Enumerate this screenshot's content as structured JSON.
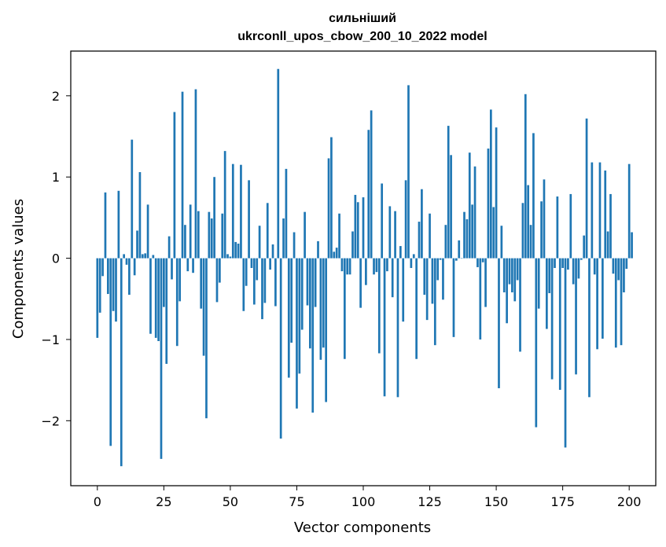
{
  "chart_data": {
    "type": "bar",
    "title": "сильніший",
    "subtitle": "ukrconll_upos_cbow_200_10_2022 model",
    "xlabel": "Vector components",
    "ylabel": "Components values",
    "xlim": [
      -10,
      210
    ],
    "ylim": [
      -2.8,
      2.55
    ],
    "xticks": [
      0,
      25,
      50,
      75,
      100,
      125,
      150,
      175,
      200
    ],
    "yticks": [
      -2,
      -1,
      0,
      1,
      2
    ],
    "ytick_labels": [
      "−2",
      "−1",
      "0",
      "1",
      "2"
    ],
    "grid": false,
    "bar_color": "#1f77b4",
    "values": [
      -0.98,
      -0.67,
      -0.22,
      0.81,
      -0.44,
      -2.31,
      -0.65,
      -0.78,
      0.83,
      -2.56,
      0.05,
      -0.08,
      -0.45,
      1.46,
      -0.21,
      0.34,
      1.06,
      0.05,
      0.06,
      0.66,
      -0.93,
      0.04,
      -0.98,
      -1.02,
      -2.47,
      -0.6,
      -1.3,
      0.27,
      -0.26,
      1.8,
      -1.08,
      -0.53,
      2.05,
      0.41,
      -0.16,
      0.66,
      -0.18,
      2.08,
      0.58,
      -0.62,
      -1.2,
      -1.97,
      0.57,
      0.49,
      1.0,
      -0.54,
      -0.3,
      0.55,
      1.32,
      0.05,
      0.02,
      1.16,
      0.2,
      0.18,
      1.15,
      -0.65,
      -0.34,
      0.96,
      -0.12,
      -0.57,
      -0.27,
      0.4,
      -0.75,
      -0.55,
      0.68,
      -0.14,
      0.17,
      -0.59,
      2.33,
      -2.22,
      0.49,
      1.1,
      -1.47,
      -1.04,
      0.32,
      -1.85,
      -1.42,
      -0.88,
      0.57,
      -0.58,
      -1.11,
      -1.9,
      -0.6,
      0.21,
      -1.25,
      -1.1,
      -1.77,
      1.23,
      1.49,
      0.08,
      0.13,
      0.55,
      -0.16,
      -1.24,
      -0.2,
      -0.2,
      0.33,
      0.78,
      0.69,
      -0.61,
      0.75,
      -0.33,
      1.58,
      1.82,
      -0.2,
      -0.17,
      -1.17,
      0.92,
      -1.7,
      -0.16,
      0.64,
      -0.48,
      0.58,
      -1.71,
      0.15,
      -0.78,
      0.96,
      2.13,
      -0.12,
      0.05,
      -1.24,
      0.45,
      0.85,
      -0.45,
      -0.76,
      0.55,
      -0.56,
      -1.07,
      -0.27,
      -0.02,
      -0.51,
      0.41,
      1.63,
      1.27,
      -0.97,
      -0.03,
      0.22,
      0.0,
      0.57,
      0.48,
      1.3,
      0.66,
      1.13,
      -0.11,
      -1.0,
      -0.05,
      -0.6,
      1.35,
      1.83,
      0.63,
      1.61,
      -1.6,
      0.4,
      -0.42,
      -0.8,
      -0.32,
      -0.42,
      -0.53,
      -0.27,
      -1.15,
      0.68,
      2.02,
      0.9,
      0.41,
      1.54,
      -2.08,
      -0.62,
      0.7,
      0.97,
      -0.87,
      -0.43,
      -1.49,
      -0.12,
      0.76,
      -1.62,
      -0.12,
      -2.33,
      -0.14,
      0.79,
      -0.32,
      -1.43,
      -0.25,
      -0.02,
      0.28,
      1.72,
      -1.71,
      1.18,
      -0.2,
      -1.12,
      1.18,
      -0.99,
      1.08,
      0.33,
      0.79,
      -0.19,
      -1.1,
      -0.27,
      -1.07,
      -0.42,
      -0.13,
      1.16,
      0.32
    ]
  }
}
